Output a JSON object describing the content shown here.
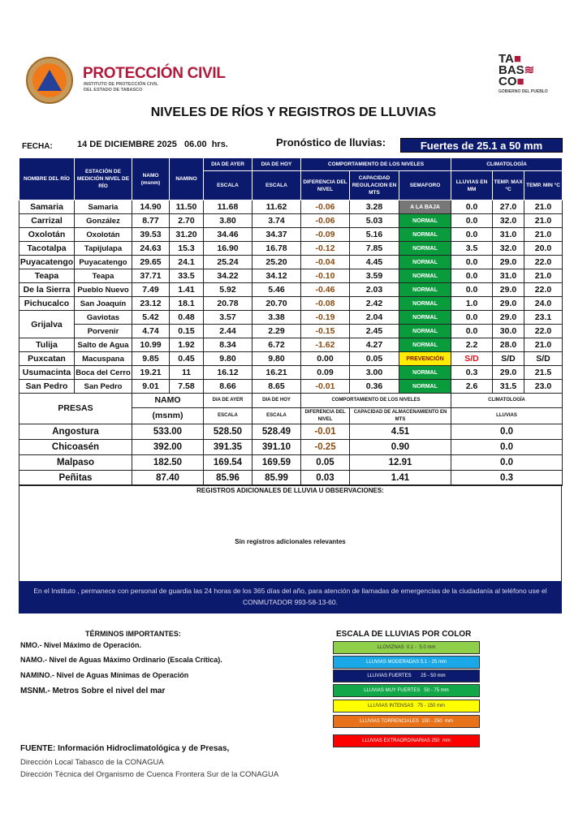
{
  "header": {
    "org_title": "PROTECCIÓN CIVIL",
    "org_sub1": "INSTITUTO DE PROTECCIÓN CIVIL",
    "org_sub2": "DEL ESTADO DE TABASCO",
    "gov_logo_text": "TABASCO",
    "gov_sub": "GOBIERNO DEL PUEBLO",
    "title": "NIVELES DE RÍOS Y REGISTROS DE LLUVIAS"
  },
  "fecha": {
    "label": "FECHA:",
    "value": "14 DE DICIEMBRE 2025   06.00  hrs."
  },
  "pronostico": {
    "label": "Pronóstico de lluvias:",
    "value": "Fuertes de 25.1 a 50 mm"
  },
  "rios": {
    "headers": {
      "rio": "NOMBRE DEL RÍO",
      "estacion": "ESTACIÓN DE MEDICIÓN NIVEL DE RÍO",
      "namo": "NAMO (msnm)",
      "namino": "NAMINO",
      "ayer": "DIA DE AYER",
      "hoy": "DIA DE HOY",
      "comp": "COMPORTAMIENTO DE LOS NIVELES",
      "clima": "CLIMATOLOGÍA",
      "escala": "ESCALA",
      "dif": "DIFERENCIA DEL NIVEL",
      "cap": "CAPACIDAD REGULACION EN MTS",
      "semaforo": "SEMAFORO",
      "lluvias": "LLUVIAS EN MM",
      "tmax": "TEMP. MAX °C",
      "tmin": "TEMP.  MIN °C"
    },
    "rows": [
      {
        "rio": "Samaria",
        "est": "Samaria",
        "namo": "14.90",
        "namino": "11.50",
        "ayer": "11.68",
        "hoy": "11.62",
        "dif": "-0.06",
        "cap": "3.28",
        "sem": "A LA BAJA",
        "ll": "0.0",
        "tmax": "27.0",
        "tmin": "21.0"
      },
      {
        "rio": "Carrizal",
        "est": "González",
        "namo": "8.77",
        "namino": "2.70",
        "ayer": "3.80",
        "hoy": "3.74",
        "dif": "-0.06",
        "cap": "5.03",
        "sem": "NORMAL",
        "ll": "0.0",
        "tmax": "32.0",
        "tmin": "21.0"
      },
      {
        "rio": "Oxolotán",
        "est": "Oxolotán",
        "namo": "39.53",
        "namino": "31.20",
        "ayer": "34.46",
        "hoy": "34.37",
        "dif": "-0.09",
        "cap": "5.16",
        "sem": "NORMAL",
        "ll": "0.0",
        "tmax": "31.0",
        "tmin": "21.0"
      },
      {
        "rio": "Tacotalpa",
        "est": "Tapijulapa",
        "namo": "24.63",
        "namino": "15.3",
        "ayer": "16.90",
        "hoy": "16.78",
        "dif": "-0.12",
        "cap": "7.85",
        "sem": "NORMAL",
        "ll": "3.5",
        "tmax": "32.0",
        "tmin": "20.0"
      },
      {
        "rio": "Puyacatengo",
        "est": "Puyacatengo",
        "namo": "29.65",
        "namino": "24.1",
        "ayer": "25.24",
        "hoy": "25.20",
        "dif": "-0.04",
        "cap": "4.45",
        "sem": "NORMAL",
        "ll": "0.0",
        "tmax": "29.0",
        "tmin": "22.0"
      },
      {
        "rio": "Teapa",
        "est": "Teapa",
        "namo": "37.71",
        "namino": "33.5",
        "ayer": "34.22",
        "hoy": "34.12",
        "dif": "-0.10",
        "cap": "3.59",
        "sem": "NORMAL",
        "ll": "0.0",
        "tmax": "31.0",
        "tmin": "21.0"
      },
      {
        "rio": "De la Sierra",
        "est": "Pueblo Nuevo",
        "namo": "7.49",
        "namino": "1.41",
        "ayer": "5.92",
        "hoy": "5.46",
        "dif": "-0.46",
        "cap": "2.03",
        "sem": "NORMAL",
        "ll": "0.0",
        "tmax": "29.0",
        "tmin": "22.0"
      },
      {
        "rio": "Pichucalco",
        "est": "San Joaquín",
        "namo": "23.12",
        "namino": "18.1",
        "ayer": "20.78",
        "hoy": "20.70",
        "dif": "-0.08",
        "cap": "2.42",
        "sem": "NORMAL",
        "ll": "1.0",
        "tmax": "29.0",
        "tmin": "24.0"
      },
      {
        "rio": "Grijalva",
        "est": "Gaviotas",
        "namo": "5.42",
        "namino": "0.48",
        "ayer": "3.57",
        "hoy": "3.38",
        "dif": "-0.19",
        "cap": "2.04",
        "sem": "NORMAL",
        "ll": "0.0",
        "tmax": "29.0",
        "tmin": "23.1"
      },
      {
        "rio": "",
        "est": "Porvenir",
        "namo": "4.74",
        "namino": "0.15",
        "ayer": "2.44",
        "hoy": "2.29",
        "dif": "-0.15",
        "cap": "2.45",
        "sem": "NORMAL",
        "ll": "0.0",
        "tmax": "30.0",
        "tmin": "22.0"
      },
      {
        "rio": "Tulija",
        "est": "Salto de Agua",
        "namo": "10.99",
        "namino": "1.92",
        "ayer": "8.34",
        "hoy": "6.72",
        "dif": "-1.62",
        "cap": "4.27",
        "sem": "NORMAL",
        "ll": "2.2",
        "tmax": "28.0",
        "tmin": "21.0"
      },
      {
        "rio": "Puxcatan",
        "est": "Macuspana",
        "namo": "9.85",
        "namino": "0.45",
        "ayer": "9.80",
        "hoy": "9.80",
        "dif": "0.00",
        "cap": "0.05",
        "sem": "PREVENCIÓN",
        "ll": "S/D",
        "tmax": "S/D",
        "tmin": "S/D"
      },
      {
        "rio": "Usumacinta",
        "est": "Boca del Cerro",
        "namo": "19.21",
        "namino": "11",
        "ayer": "16.12",
        "hoy": "16.21",
        "dif": "0.09",
        "cap": "3.00",
        "sem": "NORMAL",
        "ll": "0.3",
        "tmax": "29.0",
        "tmin": "21.5"
      },
      {
        "rio": "San Pedro",
        "est": "San Pedro",
        "namo": "9.01",
        "namino": "7.58",
        "ayer": "8.66",
        "hoy": "8.65",
        "dif": "-0.01",
        "cap": "0.36",
        "sem": "NORMAL",
        "ll": "2.6",
        "tmax": "31.5",
        "tmin": "23.0"
      }
    ]
  },
  "presas": {
    "headers": {
      "presas": "PRESAS",
      "namo": "NAMO",
      "msnm": "(msnm)",
      "ayer": "DIA DE AYER",
      "hoy": "DIA DE HOY",
      "comp": "COMPORTAMIENTO DE LOS NIVELES",
      "clima": "CLIMATOLOGÍA",
      "escala": "ESCALA",
      "dif": "DIFERENCIA DEL NIVEL",
      "cap": "CAPACIDAD DE ALMACENAMIENTO EN MTS",
      "lluvias": "LLUVIAS"
    },
    "rows": [
      {
        "name": "Angostura",
        "namo": "533.00",
        "ayer": "528.50",
        "hoy": "528.49",
        "dif": "-0.01",
        "cap": "4.51",
        "ll": "0.0"
      },
      {
        "name": "Chicoasén",
        "namo": "392.00",
        "ayer": "391.35",
        "hoy": "391.10",
        "dif": "-0.25",
        "cap": "0.90",
        "ll": "0.0"
      },
      {
        "name": "Malpaso",
        "namo": "182.50",
        "ayer": "169.54",
        "hoy": "169.59",
        "dif": "0.05",
        "cap": "12.91",
        "ll": "0.0"
      },
      {
        "name": "Peñitas",
        "namo": "87.40",
        "ayer": "85.96",
        "hoy": "85.99",
        "dif": "0.03",
        "cap": "1.41",
        "ll": "0.3"
      }
    ]
  },
  "observaciones": {
    "title": "REGISTROS ADICIONALES DE LLUVIA U OBSERVACIONES:",
    "text": "Sin registros adicionales relevantes"
  },
  "aviso": "En el Instituto , permanece con personal de guardia las 24 horas de los 365 días del año, para atención de llamadas de emergencias de la ciudadanía al teléfono use el CONMUTADOR  993-58-13-60.",
  "terminos": {
    "title": "TÉRMINOS IMPORTANTES:",
    "items": [
      "NMO.- Nivel Máximo de Operación.",
      "NAMO.- Nivel de Aguas Máximo Ordinario (Escala Crítica).",
      "NAMINO.- Nivel de Aguas Mínimas de Operación",
      "MSNM.- Metros Sobre el nivel del mar"
    ]
  },
  "escala": {
    "title": "ESCALA DE LLUVIAS POR COLOR",
    "items": [
      {
        "label": "LLOVIZNAS  0.1 -  5.0 mm",
        "color": "#8fcf4a",
        "text": "#333"
      },
      {
        "label": "LLUVIAS MODERADAS 5.1 - 25 mm",
        "color": "#1aa8e8",
        "text": "#fff"
      },
      {
        "label": "LLUVIAS FUERTES       25 - 50 mm",
        "color": "#0c1a6e",
        "text": "#fff"
      },
      {
        "label": "LLUVIAS MUY FUERTES   50 - 75 mm",
        "color": "#12a84a",
        "text": "#fff"
      },
      {
        "label": "LLUVIAS INTENSAS   75 - 150 mm",
        "color": "#ffff00",
        "text": "#333"
      },
      {
        "label": "LLUVIAS TORRENCIALES  150 - 250  mm",
        "color": "#e8721a",
        "text": "#fff"
      },
      {
        "label": "LLUVIAS EXTRAORDINARIAS 250  mm",
        "color": "#ff0000",
        "text": "#fff"
      }
    ]
  },
  "fuente": {
    "title": "FUENTE: Información Hidroclimatológica y de Presas,",
    "lines": [
      "Dirección Local Tabasco de la CONAGUA",
      "Dirección Técnica del Organismo de Cuenca Frontera Sur de la CONAGUA"
    ]
  },
  "colors": {
    "navy": "#0c1a6e",
    "normal": "#0a9c3c",
    "baja": "#777777",
    "prevencion": "#ffec00",
    "negative": "#8a4a10",
    "sd": "#e0121a"
  }
}
